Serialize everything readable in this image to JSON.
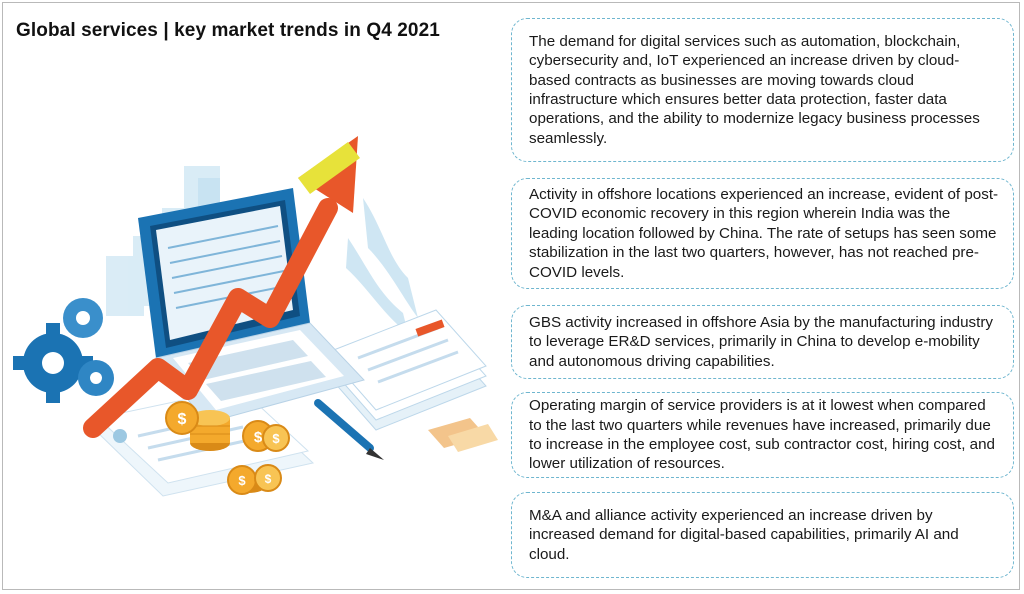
{
  "title": "Global services | key market trends in Q4 2021",
  "illustration": {
    "icon": "laptop-growth-chart-illustration",
    "colors": {
      "arrow": "#e8572a",
      "arrow_tip": "#e7e23a",
      "blue_dark": "#1b73b3",
      "blue_light": "#cfe6f3",
      "coin": "#f4a92c"
    }
  },
  "trends": [
    {
      "text": "The demand for digital services such as automation, blockchain, cybersecurity and, IoT experienced an increase driven by cloud-based contracts as businesses are moving towards cloud infrastructure which ensures better data protection, faster data operations, and the ability to modernize legacy business processes seamlessly."
    },
    {
      "text": "Activity in offshore locations experienced an increase, evident of post-COVID economic recovery in this region wherein India was the leading location followed by China. The rate of setups has seen some stabilization in the last two quarters, however, has not reached pre-COVID levels."
    },
    {
      "text": "GBS activity increased in offshore Asia by the manufacturing industry to leverage ER&D services, primarily in China to develop e-mobility and autonomous driving capabilities."
    },
    {
      "text": "Operating margin of service providers is at it lowest when compared to the last two quarters while revenues have increased, primarily due to increase in the employee cost, sub contractor cost, hiring cost, and lower utilization of resources."
    },
    {
      "text": "M&A and alliance activity experienced an increase driven by increased demand for digital-based capabilities, primarily AI and cloud."
    }
  ],
  "accent_colors": {
    "card_border": "#6fb6cf"
  }
}
